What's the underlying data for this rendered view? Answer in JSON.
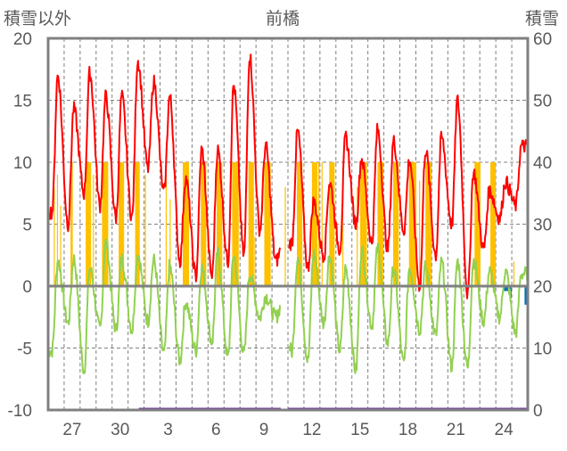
{
  "chart_data": {
    "type": "line",
    "title": "前橋",
    "ylabel_left": "積雪以外",
    "ylabel_right": "積雪",
    "ylim_left": [
      -10,
      20
    ],
    "ylim_right": [
      0,
      60
    ],
    "yticks_left": [
      "20",
      "15",
      "10",
      "5",
      "0",
      "-5",
      "-10"
    ],
    "yticks_right": [
      "60",
      "50",
      "40",
      "30",
      "20",
      "10",
      "0"
    ],
    "xticks": [
      {
        "day_index": 1,
        "label": "27"
      },
      {
        "day_index": 4,
        "label": "30"
      },
      {
        "day_index": 7,
        "label": "3"
      },
      {
        "day_index": 10,
        "label": "6"
      },
      {
        "day_index": 13,
        "label": "9"
      },
      {
        "day_index": 16,
        "label": "12"
      },
      {
        "day_index": 19,
        "label": "15"
      },
      {
        "day_index": 22,
        "label": "18"
      },
      {
        "day_index": 25,
        "label": "21"
      },
      {
        "day_index": 28,
        "label": "24"
      }
    ],
    "n_days": 30,
    "grid": true,
    "series": [
      {
        "name": "temperature-high-series",
        "color": "#ff0000",
        "daily_min": [
          6,
          5,
          7.5,
          6.5,
          5.5,
          5.5,
          9.5,
          7.5,
          2,
          0.8,
          0.8,
          2,
          2.5,
          4.5,
          2,
          3.5,
          1.5,
          2.5,
          3,
          5,
          3.5,
          3,
          4.5,
          0,
          2.5,
          5,
          -0.7,
          3,
          5.5,
          6.5
        ],
        "daily_max": [
          17,
          14.3,
          17.2,
          15.3,
          15.3,
          18.2,
          16.5,
          15.3,
          8.7,
          11,
          11,
          16.2,
          18.6,
          11.3,
          null,
          12.5,
          6.8,
          8.3,
          12,
          10.3,
          12.6,
          11.7,
          10.2,
          11,
          12,
          15,
          9.2,
          7.7,
          8.4,
          11.3
        ],
        "gap": [
          14.5,
          15.05
        ]
      },
      {
        "name": "temperature-low-series",
        "color": "#92d050",
        "daily_min": [
          -5.2,
          -3,
          -6.8,
          -3.5,
          -3.5,
          -3.5,
          -2.8,
          -5.5,
          -6,
          -5.2,
          -4.5,
          -5.8,
          -5.5,
          -2.5,
          -2.5,
          -5.3,
          -6,
          -3,
          -5.2,
          -6.8,
          -3.2,
          -4.6,
          -6.3,
          -3.5,
          -4,
          -6.5,
          -6.6,
          -2.8,
          -2.5,
          -3.8
        ],
        "daily_max": [
          2,
          2.2,
          1.4,
          3.5,
          2.2,
          2.6,
          2.1,
          1.6,
          -1.3,
          1.5,
          2.6,
          2.5,
          1,
          -0.8,
          null,
          2.3,
          2.6,
          2.5,
          1.4,
          2.9,
          3,
          1.4,
          1.5,
          1.5,
          1.9,
          2,
          2.1,
          1.2,
          1.2,
          1
        ],
        "gap": [
          14.5,
          15.05
        ]
      }
    ],
    "bars_orange": {
      "color": "#ffc000",
      "items": [
        [
          0.35,
          0.4,
          8
        ],
        [
          0.55,
          0.6,
          9
        ],
        [
          0.75,
          0.8,
          6.5
        ],
        [
          1.4,
          1.54,
          10
        ],
        [
          2.35,
          2.69,
          10
        ],
        [
          2.8,
          2.85,
          9
        ],
        [
          3.37,
          3.76,
          10
        ],
        [
          4.41,
          4.75,
          10
        ],
        [
          5.44,
          5.73,
          10
        ],
        [
          6.05,
          6.1,
          9
        ],
        [
          7.35,
          7.4,
          9
        ],
        [
          7.6,
          7.65,
          7
        ],
        [
          8.42,
          8.81,
          10
        ],
        [
          9.55,
          9.89,
          10
        ],
        [
          10.54,
          10.89,
          10
        ],
        [
          11.51,
          11.92,
          10
        ],
        [
          12.53,
          12.87,
          10
        ],
        [
          12.9,
          12.95,
          4
        ],
        [
          13.52,
          13.92,
          10
        ],
        [
          14.8,
          14.85,
          8
        ],
        [
          15.56,
          15.9,
          10
        ],
        [
          16.5,
          16.85,
          10
        ],
        [
          16.9,
          16.95,
          10
        ],
        [
          17.1,
          17.15,
          10
        ],
        [
          17.58,
          17.92,
          10
        ],
        [
          18.4,
          18.45,
          7
        ],
        [
          19.3,
          19.35,
          8
        ],
        [
          19.52,
          19.94,
          10
        ],
        [
          20.6,
          20.97,
          10
        ],
        [
          21.58,
          21.93,
          10
        ],
        [
          22.57,
          23.03,
          10
        ],
        [
          23.2,
          23.25,
          8.5
        ],
        [
          23.6,
          23.99,
          10
        ],
        [
          26.67,
          27.04,
          10
        ],
        [
          27.66,
          28.0,
          10
        ],
        [
          27.8,
          27.85,
          10
        ],
        [
          29.1,
          29.15,
          2
        ]
      ]
    },
    "bars_blue": {
      "color": "#0070c0",
      "items": [
        [
          28.5,
          28.9,
          -0.4
        ],
        [
          28.9,
          28.95,
          -1.0
        ],
        [
          29.8,
          29.95,
          -1.5
        ]
      ]
    },
    "snow_depth_line": {
      "color": "#7030a0",
      "value": 0,
      "segments": [
        [
          5.67,
          14.55
        ],
        [
          15.0,
          30
        ]
      ]
    }
  }
}
